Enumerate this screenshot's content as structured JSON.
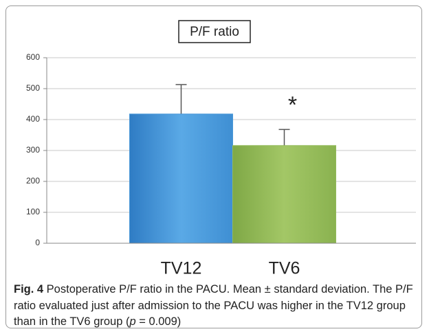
{
  "chart_data": {
    "type": "bar",
    "title": "P/F ratio",
    "categories": [
      "TV12",
      "TV6"
    ],
    "values": [
      418,
      316
    ],
    "errors": [
      95,
      52
    ],
    "colors": [
      "#4a98d8",
      "#93bb5a"
    ],
    "ylim": [
      0,
      600
    ],
    "yticks": [
      0,
      100,
      200,
      300,
      400,
      500,
      600
    ],
    "grid": true,
    "annotation": "*",
    "caption": {
      "label": "Fig. 4",
      "text": " Postoperative P/F ratio in the PACU. Mean ± standard deviation. The P/F ratio evaluated just after admission to the PACU was higher in the TV12 group than in the TV6 group (",
      "italic": "p",
      "end": " = 0.009)"
    }
  }
}
